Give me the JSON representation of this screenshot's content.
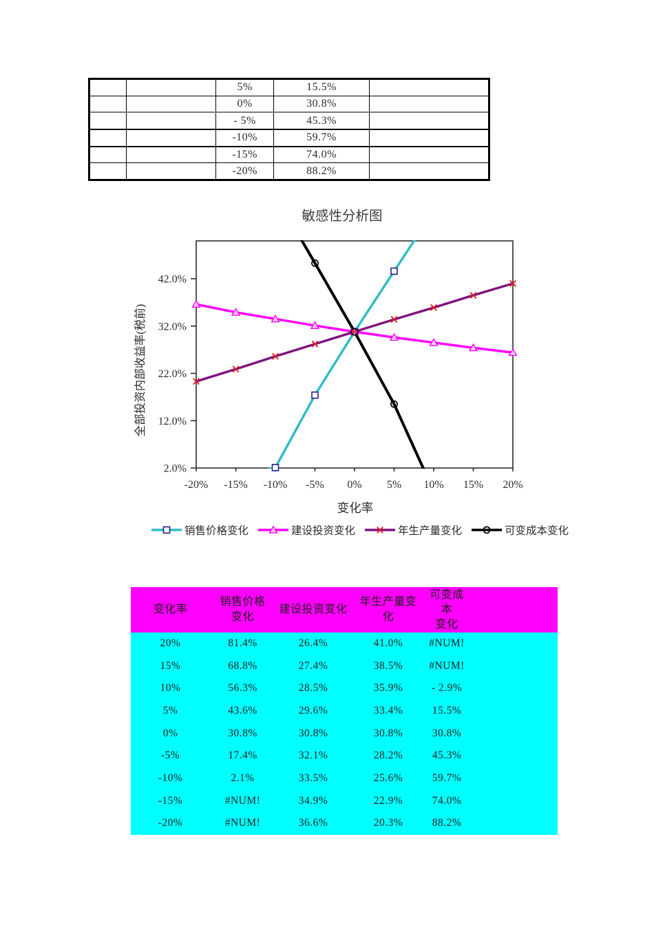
{
  "top_table": {
    "rows": [
      [
        "",
        "",
        "5%",
        "15.5%",
        ""
      ],
      [
        "",
        "",
        "0%",
        "30.8%",
        ""
      ],
      [
        "",
        "",
        "- 5%",
        "45.3%",
        ""
      ],
      [
        "",
        "",
        "-10%",
        "59.7%",
        ""
      ],
      [
        "",
        "",
        "-15%",
        "74.0%",
        ""
      ],
      [
        "",
        "",
        "-20%",
        "88.2%",
        ""
      ]
    ]
  },
  "chart_data": {
    "type": "line",
    "title": "敏感性分析图",
    "xlabel": "变化率",
    "ylabel": "全部投资内部收益率(税前)",
    "xlim": [
      -20,
      20
    ],
    "ylim": [
      2,
      50
    ],
    "grid": false,
    "legend_position": "bottom",
    "x_values": [
      -20,
      -15,
      -10,
      -5,
      0,
      5,
      10,
      15,
      20
    ],
    "x_tick_labels": [
      "-20%",
      "-15%",
      "-10%",
      "-5%",
      "0%",
      "5%",
      "10%",
      "15%",
      "20%"
    ],
    "y_tick_values": [
      42,
      32,
      22,
      12,
      2
    ],
    "y_tick_labels": [
      "42.0%",
      "32.0%",
      "22.0%",
      "12.0%",
      "2.0%"
    ],
    "axis_color": "#2b2b2b",
    "series": [
      {
        "name": "销售价格变化",
        "line_color": "#31BDC6",
        "marker": "square",
        "marker_color": "#1F1F8F",
        "marker_fill": "#FFFFFF",
        "values": [
          "#NUM!",
          "#NUM!",
          2.1,
          17.4,
          30.8,
          43.6,
          56.3,
          68.8,
          81.4
        ]
      },
      {
        "name": "建设投资变化",
        "line_color": "#FF00FF",
        "marker": "triangle",
        "marker_color": "#FF00FF",
        "marker_fill": "#FBD2F8",
        "values": [
          36.6,
          34.9,
          33.5,
          32.1,
          30.8,
          29.6,
          28.5,
          27.4,
          26.4
        ]
      },
      {
        "name": "年生产量变化",
        "line_color": "#801380",
        "marker": "x",
        "marker_color": "#E02020",
        "marker_fill": "none",
        "values": [
          20.3,
          22.9,
          25.6,
          28.2,
          30.8,
          33.4,
          35.9,
          38.5,
          41.0
        ]
      },
      {
        "name": "可变成本变化",
        "line_color": "#000000",
        "marker": "circle",
        "marker_color": "#000000",
        "marker_fill": "none",
        "values": [
          88.2,
          74.0,
          59.7,
          45.3,
          30.8,
          15.5,
          -2.9,
          "#NUM!",
          "#NUM!"
        ]
      }
    ]
  },
  "bottom_table": {
    "header_bg": "#FF00FF",
    "body_bg": "#00FFFF",
    "headers": [
      "变化率",
      "销售价格\n变化",
      "建设投资变化",
      "年生产量变\n化",
      "可变成本\n变化",
      ""
    ],
    "rows": [
      [
        "20%",
        "81.4%",
        "26.4%",
        "41.0%",
        "#NUM!",
        ""
      ],
      [
        "15%",
        "68.8%",
        "27.4%",
        "38.5%",
        "#NUM!",
        ""
      ],
      [
        "10%",
        "56.3%",
        "28.5%",
        "35.9%",
        "- 2.9%",
        ""
      ],
      [
        "5%",
        "43.6%",
        "29.6%",
        "33.4%",
        "15.5%",
        ""
      ],
      [
        "0%",
        "30.8%",
        "30.8%",
        "30.8%",
        "30.8%",
        ""
      ],
      [
        "-5%",
        "17.4%",
        "32.1%",
        "28.2%",
        "45.3%",
        ""
      ],
      [
        "-10%",
        "2.1%",
        "33.5%",
        "25.6%",
        "59.7%",
        ""
      ],
      [
        "-15%",
        "#NUM!",
        "34.9%",
        "22.9%",
        "74.0%",
        ""
      ],
      [
        "-20%",
        "#NUM!",
        "36.6%",
        "20.3%",
        "88.2%",
        ""
      ]
    ]
  }
}
